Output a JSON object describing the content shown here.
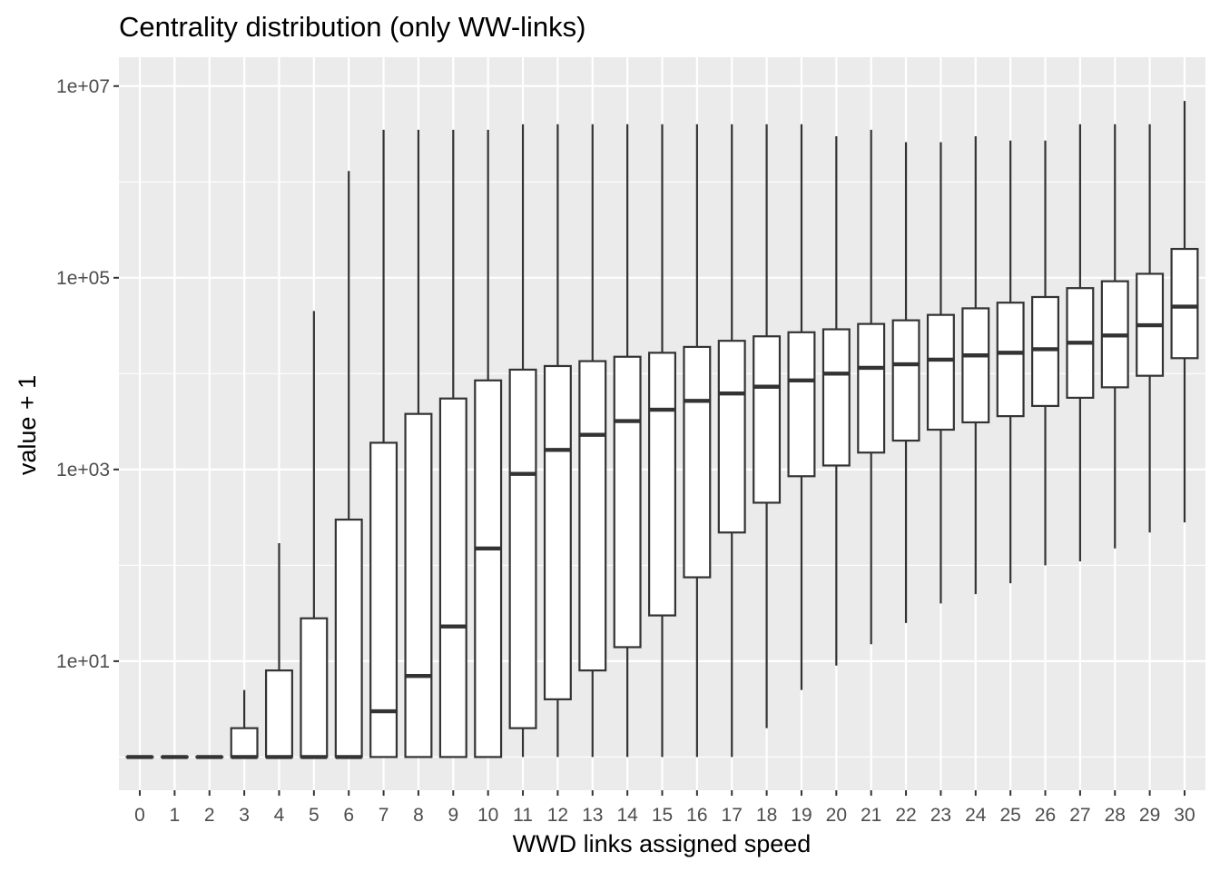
{
  "chart_data": {
    "type": "boxplot",
    "title": "Centrality distribution (only WW-links)",
    "xlabel": "WWD links assigned speed",
    "ylabel": "value + 1",
    "y_scale": "log10",
    "y_ticks": [
      {
        "value": 10,
        "label": "1e+01"
      },
      {
        "value": 1000,
        "label": "1e+03"
      },
      {
        "value": 100000,
        "label": "1e+05"
      },
      {
        "value": 10000000,
        "label": "1e+07"
      }
    ],
    "ylim": [
      0.45,
      20000000
    ],
    "grid": true,
    "colors": {
      "panel": "#ebebeb",
      "grid": "#ffffff",
      "box_fill": "#ffffff",
      "box_line": "#333333"
    },
    "categories": [
      "0",
      "1",
      "2",
      "3",
      "4",
      "5",
      "6",
      "7",
      "8",
      "9",
      "10",
      "11",
      "12",
      "13",
      "14",
      "15",
      "16",
      "17",
      "18",
      "19",
      "20",
      "21",
      "22",
      "23",
      "24",
      "25",
      "26",
      "27",
      "28",
      "29",
      "30"
    ],
    "boxes": [
      {
        "x": "0",
        "lower": 1,
        "q1": 1,
        "median": 1,
        "q3": 1,
        "upper": 1
      },
      {
        "x": "1",
        "lower": 1,
        "q1": 1,
        "median": 1,
        "q3": 1,
        "upper": 1
      },
      {
        "x": "2",
        "lower": 1,
        "q1": 1,
        "median": 1,
        "q3": 1,
        "upper": 1
      },
      {
        "x": "3",
        "lower": 1,
        "q1": 1,
        "median": 1,
        "q3": 2,
        "upper": 5
      },
      {
        "x": "4",
        "lower": 1,
        "q1": 1,
        "median": 1,
        "q3": 8,
        "upper": 170
      },
      {
        "x": "5",
        "lower": 1,
        "q1": 1,
        "median": 1,
        "q3": 28,
        "upper": 45000
      },
      {
        "x": "6",
        "lower": 1,
        "q1": 1,
        "median": 1,
        "q3": 300,
        "upper": 1300000
      },
      {
        "x": "7",
        "lower": 1,
        "q1": 1,
        "median": 3,
        "q3": 1900,
        "upper": 3500000
      },
      {
        "x": "8",
        "lower": 1,
        "q1": 1,
        "median": 7,
        "q3": 3800,
        "upper": 3500000
      },
      {
        "x": "9",
        "lower": 1,
        "q1": 1,
        "median": 23,
        "q3": 5500,
        "upper": 3500000
      },
      {
        "x": "10",
        "lower": 1,
        "q1": 1,
        "median": 150,
        "q3": 8500,
        "upper": 3500000
      },
      {
        "x": "11",
        "lower": 1,
        "q1": 2,
        "median": 900,
        "q3": 11000,
        "upper": 4000000
      },
      {
        "x": "12",
        "lower": 1,
        "q1": 4,
        "median": 1600,
        "q3": 12000,
        "upper": 4000000
      },
      {
        "x": "13",
        "lower": 1,
        "q1": 8,
        "median": 2300,
        "q3": 13500,
        "upper": 4000000
      },
      {
        "x": "14",
        "lower": 1,
        "q1": 14,
        "median": 3200,
        "q3": 15000,
        "upper": 4000000
      },
      {
        "x": "15",
        "lower": 1,
        "q1": 30,
        "median": 4200,
        "q3": 16500,
        "upper": 4000000
      },
      {
        "x": "16",
        "lower": 1,
        "q1": 75,
        "median": 5200,
        "q3": 19000,
        "upper": 4000000
      },
      {
        "x": "17",
        "lower": 1,
        "q1": 220,
        "median": 6200,
        "q3": 22000,
        "upper": 4000000
      },
      {
        "x": "18",
        "lower": 2,
        "q1": 450,
        "median": 7300,
        "q3": 24500,
        "upper": 4000000
      },
      {
        "x": "19",
        "lower": 5,
        "q1": 850,
        "median": 8500,
        "q3": 27000,
        "upper": 4000000
      },
      {
        "x": "20",
        "lower": 9,
        "q1": 1100,
        "median": 10000,
        "q3": 29000,
        "upper": 3000000
      },
      {
        "x": "21",
        "lower": 15,
        "q1": 1500,
        "median": 11500,
        "q3": 33000,
        "upper": 3500000
      },
      {
        "x": "22",
        "lower": 25,
        "q1": 2000,
        "median": 12500,
        "q3": 36000,
        "upper": 2600000
      },
      {
        "x": "23",
        "lower": 40,
        "q1": 2600,
        "median": 14000,
        "q3": 41000,
        "upper": 2600000
      },
      {
        "x": "24",
        "lower": 50,
        "q1": 3100,
        "median": 15500,
        "q3": 48000,
        "upper": 3000000
      },
      {
        "x": "25",
        "lower": 65,
        "q1": 3600,
        "median": 16500,
        "q3": 55000,
        "upper": 2700000
      },
      {
        "x": "26",
        "lower": 100,
        "q1": 4600,
        "median": 18000,
        "q3": 63000,
        "upper": 2700000
      },
      {
        "x": "27",
        "lower": 110,
        "q1": 5600,
        "median": 21000,
        "q3": 78000,
        "upper": 4000000
      },
      {
        "x": "28",
        "lower": 150,
        "q1": 7200,
        "median": 25000,
        "q3": 92000,
        "upper": 4000000
      },
      {
        "x": "29",
        "lower": 220,
        "q1": 9500,
        "median": 32000,
        "q3": 110000,
        "upper": 4000000
      },
      {
        "x": "30",
        "lower": 280,
        "q1": 14500,
        "median": 50000,
        "q3": 200000,
        "upper": 7000000
      }
    ]
  }
}
